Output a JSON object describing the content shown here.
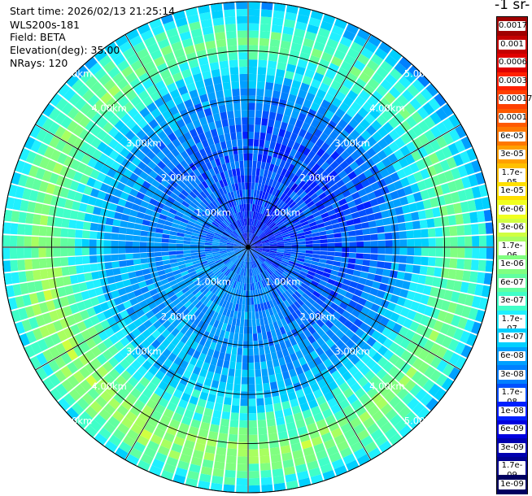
{
  "info": {
    "start_time": "Start time: 2026/02/13 21:25:14",
    "instrument": "WLS200s-181",
    "field": "Field: BETA",
    "elevation": "Elevation(deg): 35.00",
    "nrays": "NRays: 120"
  },
  "colorbar": {
    "title": "-1 sr-",
    "labels": [
      "0.0017",
      "0.001",
      "0.0006",
      "0.0003",
      "0.00017",
      "0.0001",
      "6e-05",
      "3e-05",
      "1.7e-05",
      "1e-05",
      "6e-06",
      "3e-06",
      "1.7e-06",
      "1e-06",
      "6e-07",
      "3e-07",
      "1.7e-07",
      "1e-07",
      "6e-08",
      "3e-08",
      "1.7e-08",
      "1e-08",
      "6e-09",
      "3e-09",
      "1.7e-09",
      "1e-09"
    ],
    "colors": [
      "#a00000",
      "#c40000",
      "#e00000",
      "#ff2000",
      "#ff4000",
      "#ff5a00",
      "#ff7800",
      "#ffa000",
      "#ffc000",
      "#ffe000",
      "#f0ff20",
      "#d0ff40",
      "#a8ff60",
      "#80ff80",
      "#60ffa0",
      "#40ffc8",
      "#20f0ff",
      "#00d0ff",
      "#00a0ff",
      "#0080ff",
      "#0050ff",
      "#0020ff",
      "#0000e0",
      "#0000b0",
      "#000090",
      "#000060"
    ]
  },
  "chart_data": {
    "type": "heatmap",
    "projection": "polar PPI scan",
    "field": "BETA",
    "nrays": 120,
    "range_rings_km": [
      1,
      2,
      3,
      4,
      5
    ],
    "ring_labels": [
      "1.00km",
      "2.00km",
      "3.00km",
      "4.00km",
      "5.00km"
    ],
    "max_range_km": 5.0,
    "value_scale": "log",
    "radial_profile": [
      {
        "range_km": 0.5,
        "beta": 2e-08
      },
      {
        "range_km": 1.0,
        "beta": 3e-08
      },
      {
        "range_km": 2.0,
        "beta": 3e-08
      },
      {
        "range_km": 3.0,
        "beta": 6e-08
      },
      {
        "range_km": 3.7,
        "beta": 3e-07
      },
      {
        "range_km": 4.2,
        "beta": 1e-06
      },
      {
        "range_km": 4.7,
        "beta": 3e-07
      },
      {
        "range_km": 5.0,
        "beta": 1e-07
      }
    ]
  }
}
